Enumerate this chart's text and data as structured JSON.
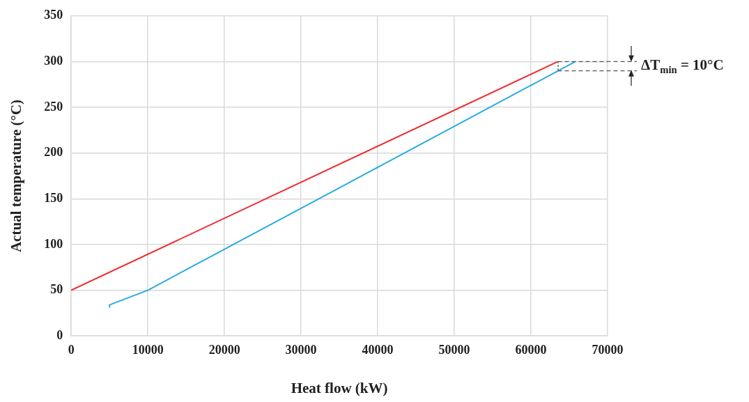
{
  "chart_data": {
    "type": "line",
    "xlabel": "Heat flow (kW)",
    "ylabel": "Actual temperature (°C)",
    "series": [
      {
        "color": "#ee2b2e",
        "x": [
          0,
          63500
        ],
        "values": [
          50,
          300
        ]
      },
      {
        "color": "#29abe2",
        "x": [
          5000,
          5000,
          10000,
          65800
        ],
        "values": [
          31,
          34,
          50,
          300
        ]
      }
    ],
    "xlim": [
      0,
      70000
    ],
    "xticks": [
      0,
      10000,
      20000,
      30000,
      40000,
      50000,
      60000,
      70000
    ],
    "ylim": [
      0,
      350
    ],
    "yticks": [
      0,
      50,
      100,
      150,
      200,
      250,
      300,
      350
    ],
    "grid": true,
    "legend": false,
    "marker": "none",
    "line_style": "solid",
    "ref_lines": [
      {
        "axis": "y",
        "value": 300,
        "color": "#555555",
        "line_style": "dashed"
      },
      {
        "axis": "y",
        "value": 290,
        "color": "#555555",
        "line_style": "dashed"
      }
    ],
    "annotations": [
      "ΔT$_{min}$ = 10°C"
    ]
  }
}
